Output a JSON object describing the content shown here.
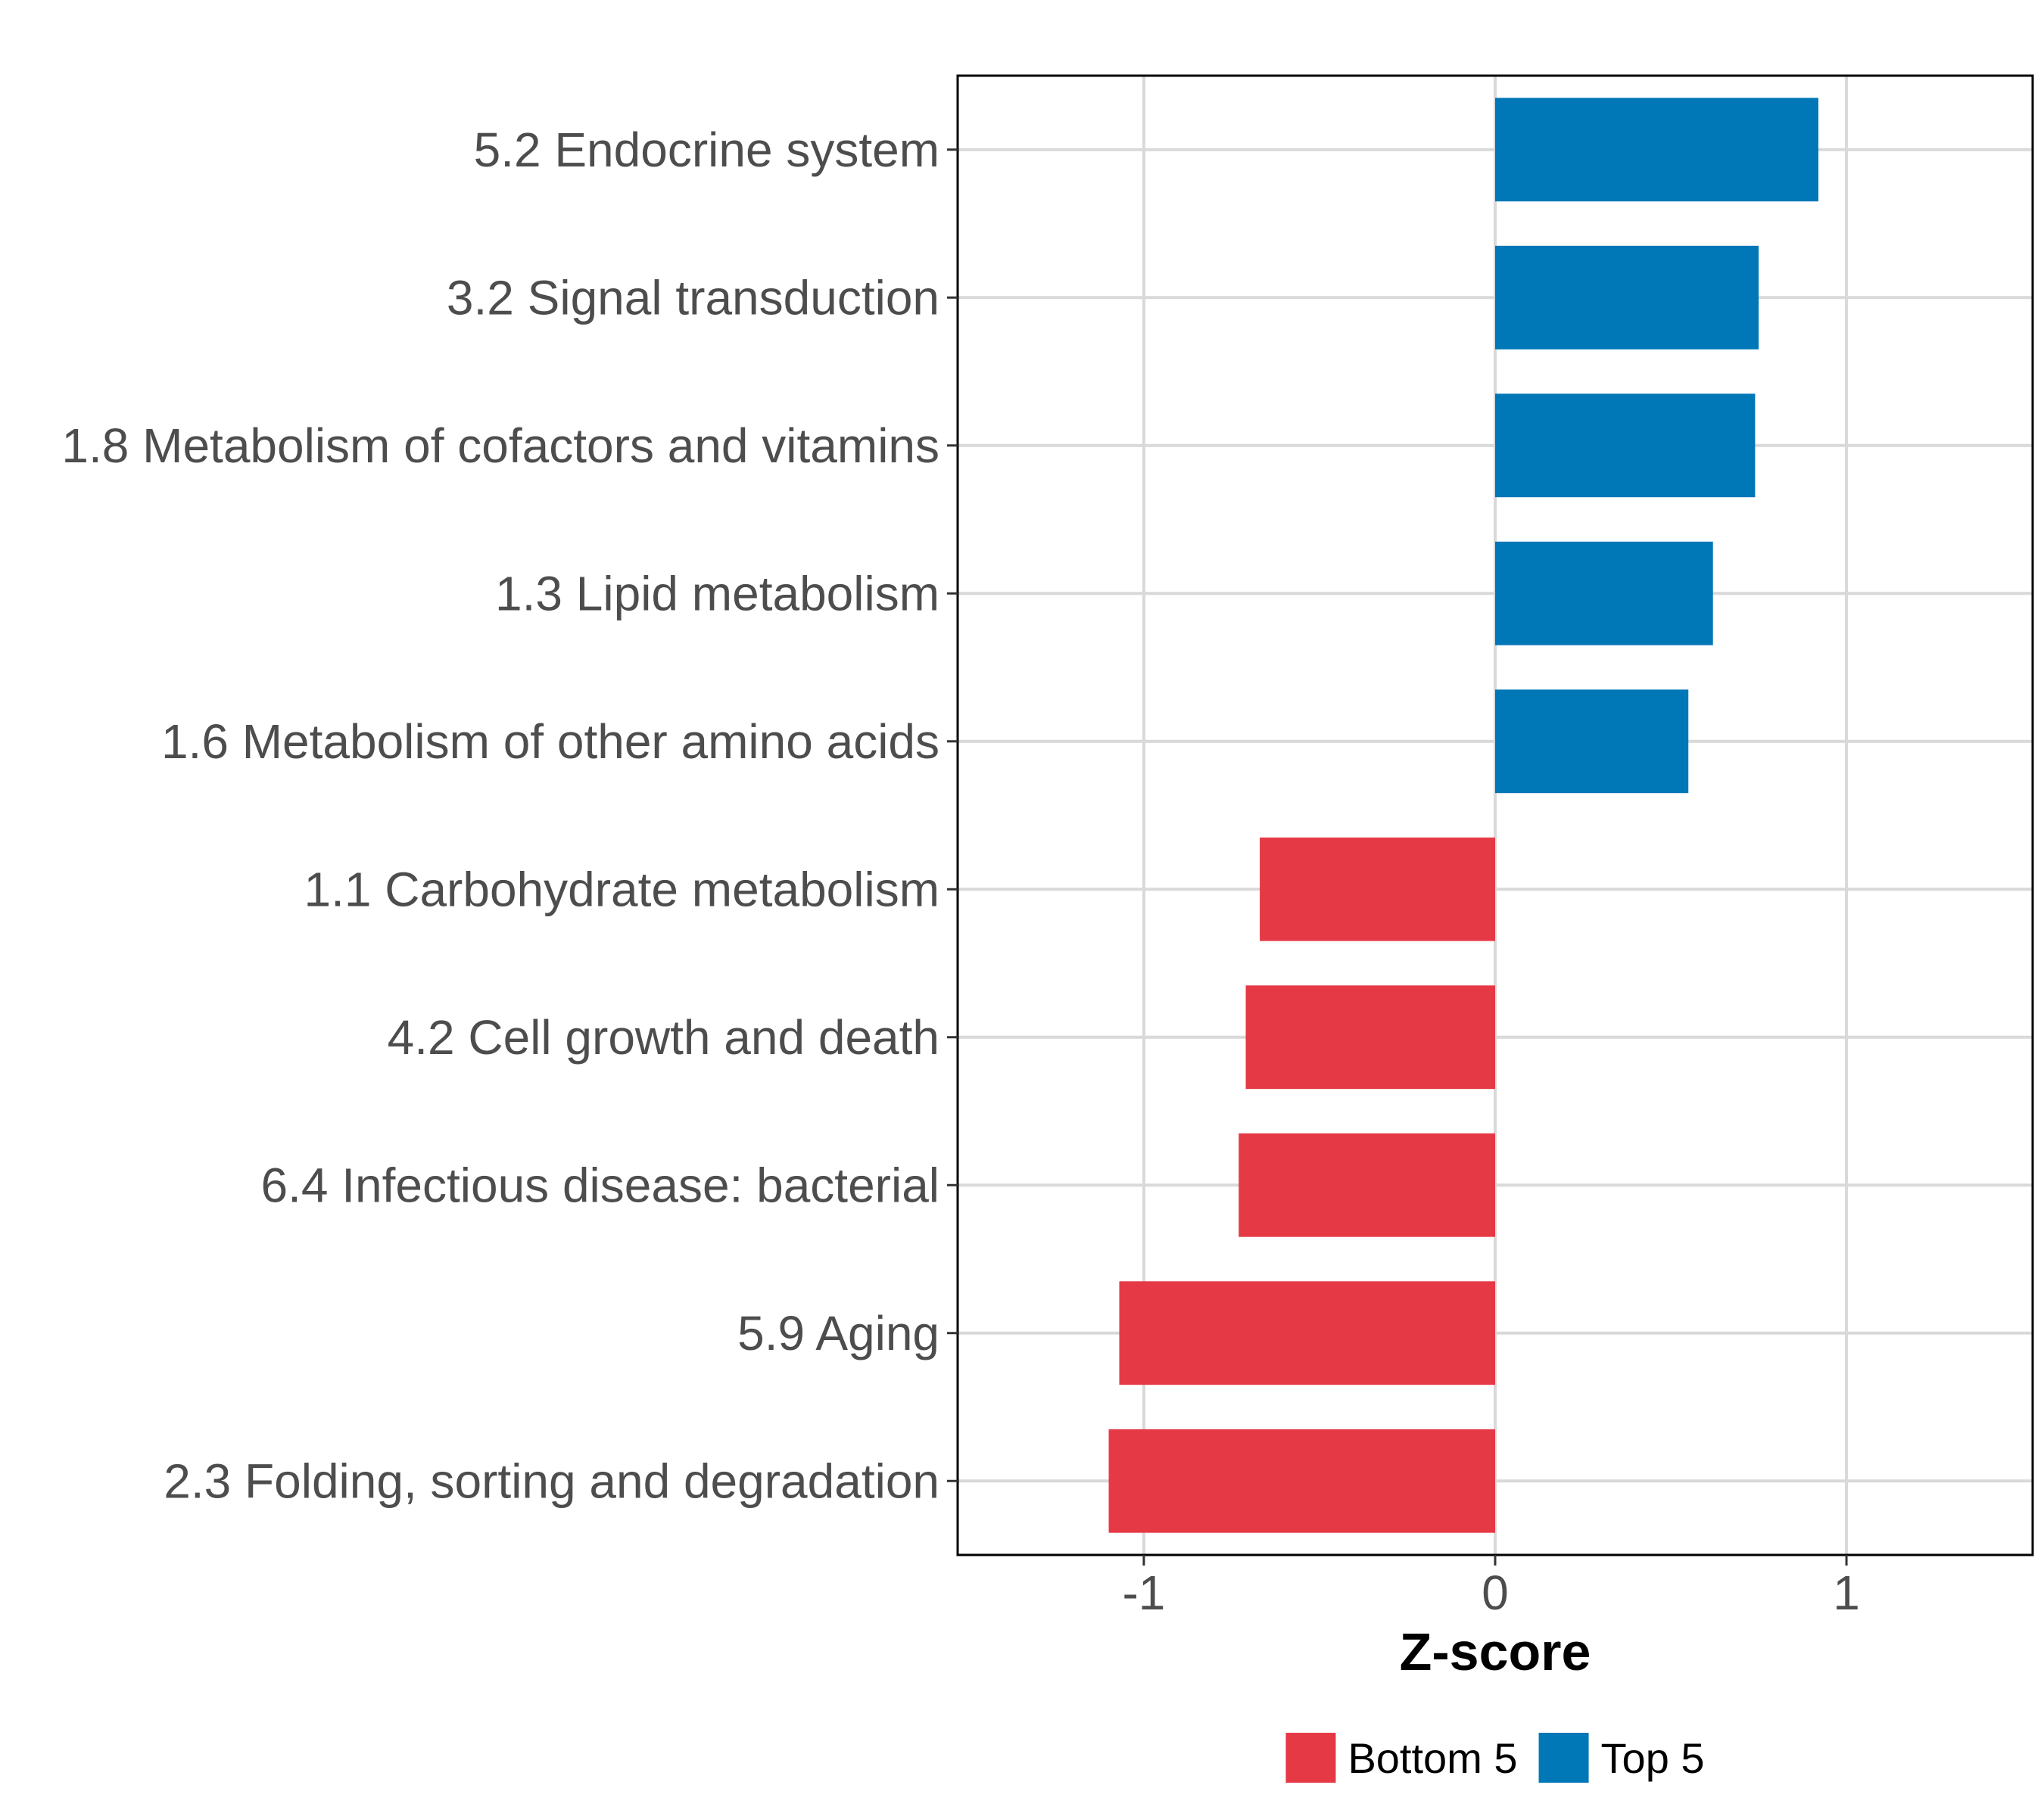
{
  "chart_data": {
    "type": "bar",
    "orientation": "horizontal",
    "title": "",
    "xlabel": "Z-score",
    "ylabel": "",
    "xlim": [
      -1.53,
      1.53
    ],
    "xticks": [
      -1,
      0,
      1
    ],
    "xtick_labels": [
      "-1",
      "0",
      "1"
    ],
    "grid": true,
    "legend_position": "bottom",
    "categories": [
      "5.2 Endocrine system",
      "3.2 Signal transduction",
      "1.8 Metabolism of cofactors and vitamins",
      "1.3 Lipid metabolism",
      "1.6 Metabolism of other amino acids",
      "1.1 Carbohydrate metabolism",
      "4.2 Cell growth and death",
      "6.4 Infectious disease: bacterial",
      "5.9 Aging",
      "2.3 Folding, sorting and degradation"
    ],
    "values": [
      0.92,
      0.75,
      0.74,
      0.62,
      0.55,
      -0.67,
      -0.71,
      -0.73,
      -1.07,
      -1.1
    ],
    "groups": [
      "Top 5",
      "Top 5",
      "Top 5",
      "Top 5",
      "Top 5",
      "Bottom 5",
      "Bottom 5",
      "Bottom 5",
      "Bottom 5",
      "Bottom 5"
    ],
    "legend": [
      {
        "name": "Bottom 5",
        "color": "#e63946"
      },
      {
        "name": "Top 5",
        "color": "#0077b6"
      }
    ]
  }
}
